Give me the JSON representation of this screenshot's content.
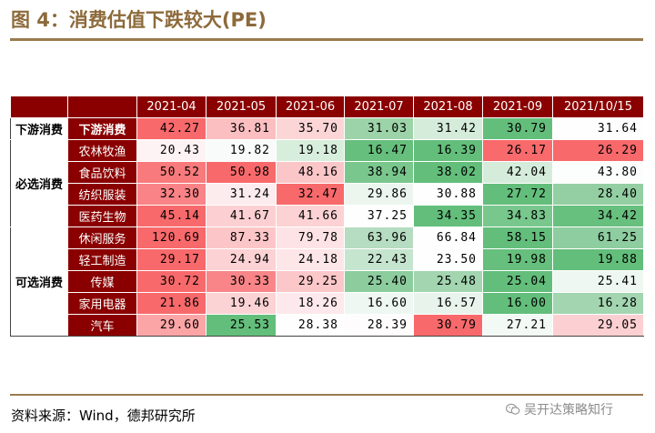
{
  "title": "图 4：消费估值下跌较大(PE)",
  "source": "资料来源：Wind，德邦研究所",
  "watermark": "吴开达策略知行",
  "colors": {
    "accent": "#8a0000",
    "rule": "#9a7b4f",
    "title": "#8d6a3b"
  },
  "table": {
    "headers": [
      "2021-04",
      "2021-05",
      "2021-06",
      "2021-07",
      "2021-08",
      "2021-09",
      "2021/10/15"
    ],
    "groups": [
      {
        "name": "下游消费",
        "rows": [
          {
            "label": "下游消费",
            "values": [
              "42.27",
              "36.81",
              "35.70",
              "31.03",
              "31.42",
              "30.79",
              "31.64"
            ],
            "colors": [
              "#f8696b",
              "#fcbfc1",
              "#fcd5d7",
              "#9dd3a8",
              "#d6ecdb",
              "#64be7b",
              "#fdfefd"
            ]
          }
        ]
      },
      {
        "name": "必选消费",
        "rows": [
          {
            "label": "农林牧渔",
            "values": [
              "20.43",
              "19.82",
              "19.18",
              "16.47",
              "16.39",
              "26.17",
              "26.29"
            ],
            "colors": [
              "#fef3f4",
              "#f9fbfa",
              "#d8eedc",
              "#66bf7c",
              "#63be7b",
              "#f86a6c",
              "#f8696b"
            ]
          },
          {
            "label": "食品饮料",
            "values": [
              "50.52",
              "50.98",
              "48.16",
              "38.94",
              "38.02",
              "42.04",
              "43.80"
            ],
            "colors": [
              "#f87a7c",
              "#f8696b",
              "#fac6c8",
              "#79c78d",
              "#63be7b",
              "#d5ecdb",
              "#fcfefd"
            ]
          },
          {
            "label": "纺织服装",
            "values": [
              "32.30",
              "31.24",
              "32.47",
              "29.86",
              "30.88",
              "27.72",
              "28.40"
            ],
            "colors": [
              "#f98386",
              "#fdecee",
              "#f8696b",
              "#ecf6ef",
              "#fdfefd",
              "#63be7b",
              "#93cfa2"
            ]
          },
          {
            "label": "医药生物",
            "values": [
              "45.14",
              "41.67",
              "41.66",
              "37.25",
              "34.35",
              "34.83",
              "34.42"
            ],
            "colors": [
              "#f8696b",
              "#fcd0d2",
              "#fcd2d4",
              "#fdfefd",
              "#63be7b",
              "#78c78c",
              "#68c07f"
            ]
          }
        ]
      },
      {
        "name": "可选消费",
        "rows": [
          {
            "label": "休闲服务",
            "values": [
              "120.69",
              "87.33",
              "79.78",
              "63.96",
              "66.84",
              "58.15",
              "61.25"
            ],
            "colors": [
              "#f8696b",
              "#fcc6c8",
              "#fde3e5",
              "#b6dcc1",
              "#fdfefd",
              "#63be7b",
              "#8ecda0"
            ]
          },
          {
            "label": "轻工制造",
            "values": [
              "29.17",
              "24.94",
              "24.18",
              "22.43",
              "23.50",
              "19.98",
              "19.88"
            ],
            "colors": [
              "#f8696b",
              "#fcd2d4",
              "#fde6e8",
              "#c6e5cf",
              "#fdfefd",
              "#66bf7c",
              "#63be7b"
            ]
          },
          {
            "label": "传媒",
            "values": [
              "30.72",
              "30.33",
              "29.25",
              "25.40",
              "25.48",
              "25.04",
              "25.41"
            ],
            "colors": [
              "#f8696b",
              "#f98588",
              "#fbc7c9",
              "#8ccc9d",
              "#a2d5b0",
              "#63be7b",
              "#eef7f1"
            ]
          },
          {
            "label": "家用电器",
            "values": [
              "21.86",
              "19.46",
              "18.26",
              "16.60",
              "16.57",
              "16.00",
              "16.28"
            ],
            "colors": [
              "#f8696b",
              "#fcd3d5",
              "#fde9eb",
              "#eef7f1",
              "#e8f4eb",
              "#63be7b",
              "#a2d5b0"
            ]
          },
          {
            "label": "汽车",
            "values": [
              "29.60",
              "25.53",
              "28.38",
              "28.39",
              "30.79",
              "27.21",
              "29.05"
            ],
            "colors": [
              "#fca5a7",
              "#63be7b",
              "#fdfefd",
              "#fefcfc",
              "#f8696b",
              "#f3f9f5",
              "#fcd0d2"
            ]
          }
        ]
      }
    ]
  }
}
